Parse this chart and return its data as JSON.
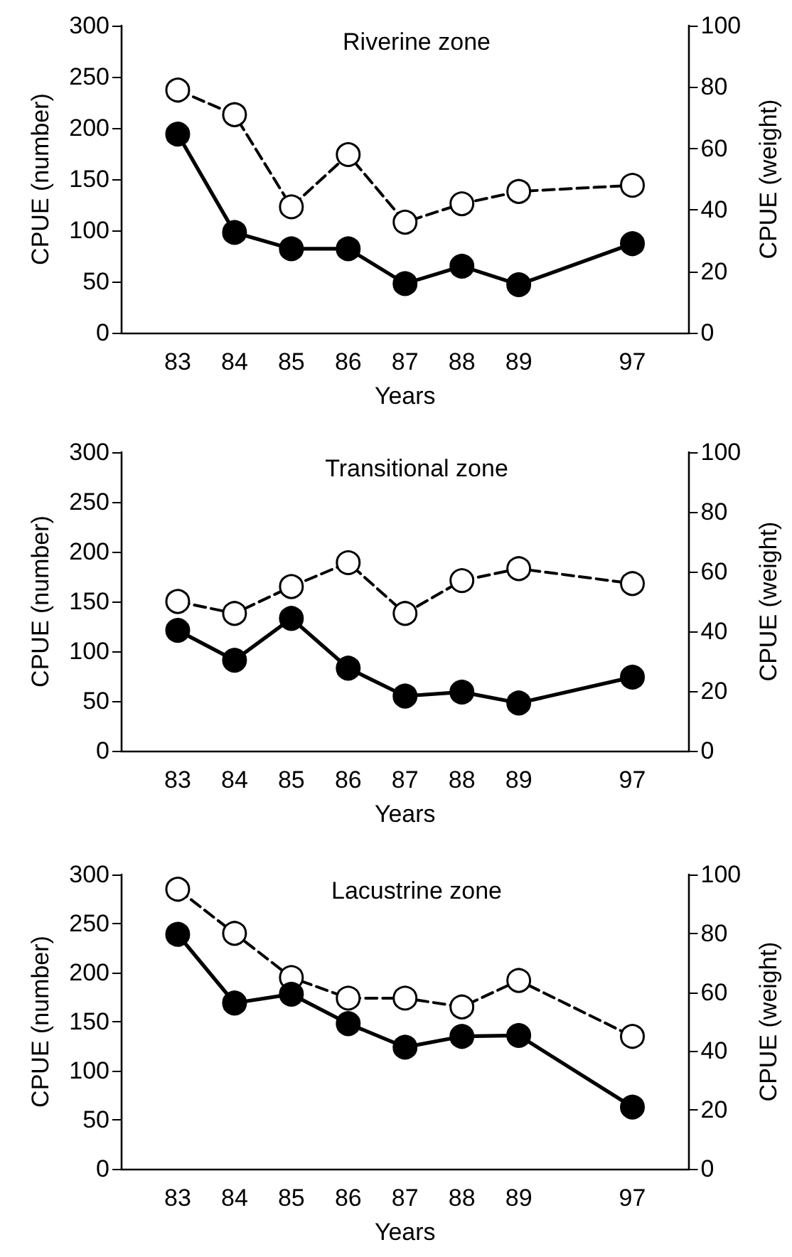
{
  "chart_data": [
    {
      "type": "line",
      "title": "Riverine zone",
      "xlabel": "Years",
      "ylabel": "CPUE (number)",
      "y2label": "CPUE (weight)",
      "categories": [
        null,
        "83",
        "84",
        "85",
        "86",
        "87",
        "88",
        "89",
        null,
        "97",
        null
      ],
      "series": [
        {
          "color": "#000000",
          "line_style": "solid",
          "values": [
            null,
            194,
            98,
            82,
            82,
            48,
            65,
            47,
            null,
            87,
            null
          ]
        },
        {
          "color": "#ffffff",
          "line_style": "dashed",
          "axis": "y2",
          "values": [
            null,
            79,
            71,
            41,
            58,
            36,
            42,
            46,
            null,
            48,
            null
          ]
        }
      ],
      "ylim": [
        0,
        300
      ],
      "yticks": [
        0,
        50,
        100,
        150,
        200,
        250,
        300
      ],
      "y2lim": [
        0,
        100
      ],
      "y2ticks": [
        0,
        20,
        40,
        60,
        80,
        100
      ],
      "marker": "circle",
      "grid": false
    },
    {
      "type": "line",
      "title": "Transitional zone",
      "xlabel": "Years",
      "ylabel": "CPUE (number)",
      "y2label": "CPUE (weight)",
      "categories": [
        null,
        "83",
        "84",
        "85",
        "86",
        "87",
        "88",
        "89",
        null,
        "97",
        null
      ],
      "series": [
        {
          "color": "#000000",
          "line_style": "solid",
          "values": [
            null,
            121,
            91,
            133,
            83,
            55,
            59,
            48,
            null,
            74,
            null
          ]
        },
        {
          "color": "#ffffff",
          "line_style": "dashed",
          "axis": "y2",
          "values": [
            null,
            50,
            46,
            55,
            63,
            46,
            57,
            61,
            null,
            56,
            null
          ]
        }
      ],
      "ylim": [
        0,
        300
      ],
      "yticks": [
        0,
        50,
        100,
        150,
        200,
        250,
        300
      ],
      "y2lim": [
        0,
        100
      ],
      "y2ticks": [
        0,
        20,
        40,
        60,
        80,
        100
      ],
      "marker": "circle",
      "grid": false
    },
    {
      "type": "line",
      "title": "Lacustrine zone",
      "xlabel": "Years",
      "ylabel": "CPUE (number)",
      "y2label": "CPUE (weight)",
      "categories": [
        null,
        "83",
        "84",
        "85",
        "86",
        "87",
        "88",
        "89",
        null,
        "97",
        null
      ],
      "series": [
        {
          "color": "#000000",
          "line_style": "solid",
          "values": [
            null,
            239,
            169,
            178,
            148,
            124,
            135,
            136,
            null,
            63,
            null
          ]
        },
        {
          "color": "#ffffff",
          "line_style": "dashed",
          "axis": "y2",
          "values": [
            null,
            95,
            80,
            65,
            58,
            58,
            55,
            64,
            null,
            45,
            null
          ]
        }
      ],
      "ylim": [
        0,
        300
      ],
      "yticks": [
        0,
        50,
        100,
        150,
        200,
        250,
        300
      ],
      "y2lim": [
        0,
        100
      ],
      "y2ticks": [
        0,
        20,
        40,
        60,
        80,
        100
      ],
      "marker": "circle",
      "grid": false
    }
  ]
}
